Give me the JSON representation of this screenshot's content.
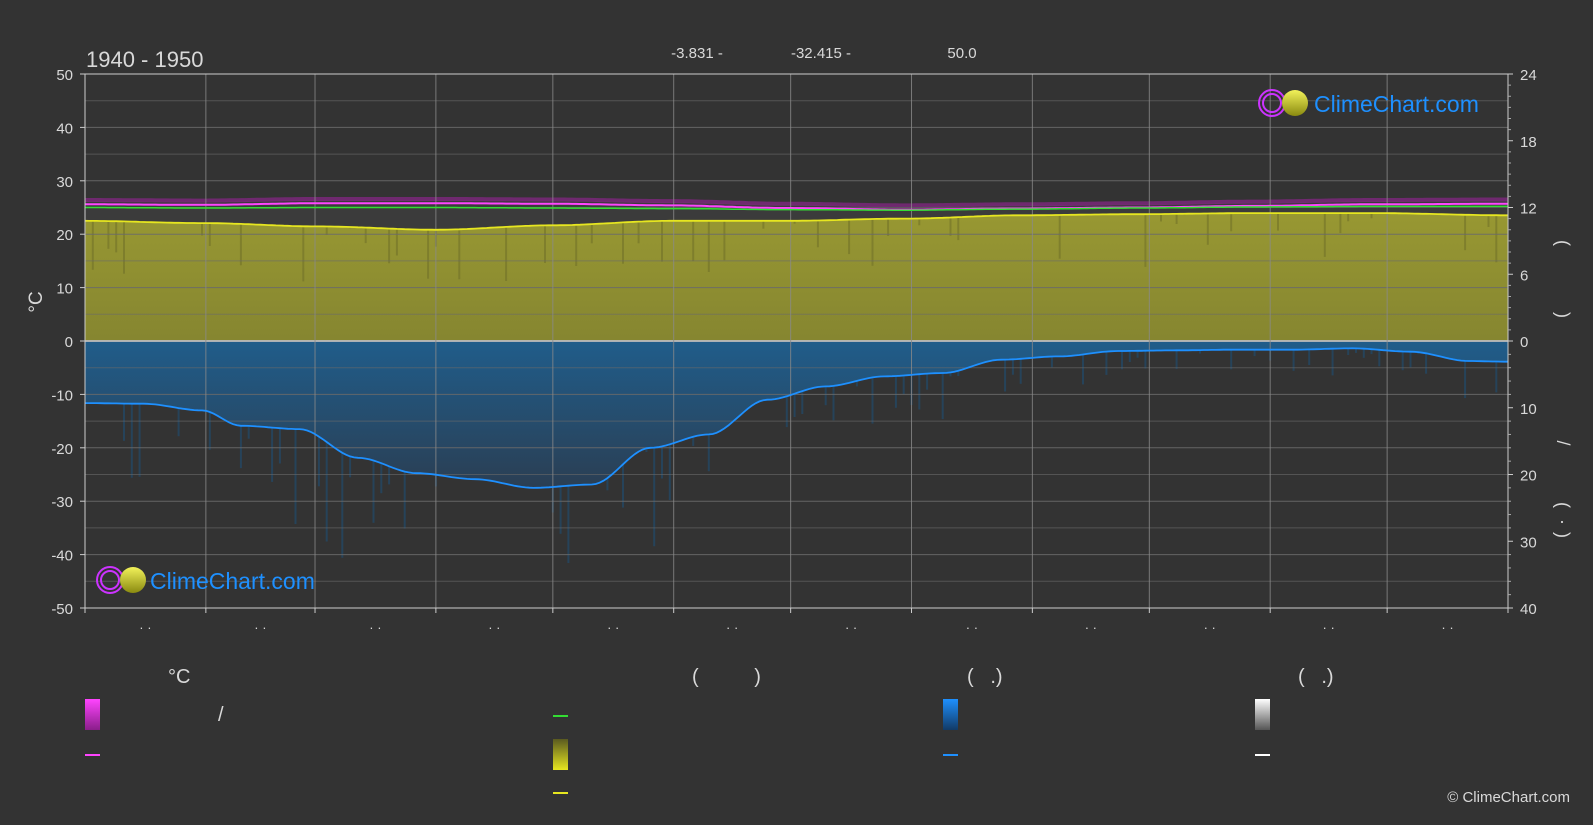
{
  "header": {
    "period": "1940 - 1950",
    "coord_lat": "-3.831 -",
    "coord_lon": "-32.415 -",
    "elevation": "50.0"
  },
  "copyright": "© ClimeChart.com",
  "watermark": {
    "text": "ClimeChart.com",
    "color": "#1e90ff"
  },
  "chart_data": {
    "type": "area",
    "x_tick_labels": [
      "· ·",
      "· ·",
      "· ·",
      "· ·",
      "· ·",
      "· ·",
      "· ·",
      "· ·",
      "· ·",
      "· ·",
      "· ·",
      "· ·"
    ],
    "left_axis": {
      "label": "°C",
      "ylim": [
        -50,
        50
      ],
      "ticks": [
        50,
        40,
        30,
        20,
        10,
        0,
        -10,
        -20,
        -30,
        -40,
        -50
      ]
    },
    "right_axis_upper": {
      "ylim": [
        0,
        24
      ],
      "ticks": [
        24,
        18,
        12,
        6,
        0
      ],
      "label_glyphs": [
        "(",
        ")"
      ]
    },
    "right_axis_lower": {
      "ylim": [
        0,
        40
      ],
      "ticks": [
        0,
        10,
        20,
        30,
        40
      ],
      "label_glyphs": [
        "/",
        "(",
        "·",
        ")"
      ]
    },
    "grid": true,
    "x_range": [
      0,
      365
    ],
    "series": [
      {
        "key": "temp_max_line",
        "color": "#ff44ff",
        "x": [
          0,
          30,
          60,
          90,
          120,
          150,
          180,
          210,
          240,
          270,
          300,
          330,
          365
        ],
        "values": [
          25.6,
          25.5,
          25.8,
          25.8,
          25.7,
          25.4,
          24.9,
          24.6,
          24.8,
          25.0,
          25.3,
          25.6,
          25.7
        ]
      },
      {
        "key": "temp_mean_line",
        "color": "#33dd33",
        "x": [
          0,
          30,
          60,
          90,
          120,
          150,
          180,
          210,
          240,
          270,
          300,
          330,
          365
        ],
        "values": [
          25.0,
          24.9,
          25.0,
          25.0,
          24.9,
          24.8,
          24.6,
          24.5,
          24.7,
          24.9,
          25.1,
          25.2,
          25.2
        ]
      },
      {
        "key": "sunshine_line",
        "color": "#e6e620",
        "axis": "right_upper",
        "x": [
          0,
          30,
          60,
          90,
          120,
          150,
          180,
          210,
          240,
          270,
          300,
          330,
          365
        ],
        "values": [
          10.8,
          10.6,
          10.3,
          10.0,
          10.4,
          10.8,
          10.8,
          11.0,
          11.3,
          11.4,
          11.5,
          11.5,
          11.3
        ]
      },
      {
        "key": "precipitation_line",
        "color": "#1e90ff",
        "axis": "right_lower",
        "x": [
          0,
          15,
          30,
          40,
          55,
          70,
          85,
          100,
          115,
          130,
          145,
          160,
          175,
          190,
          205,
          220,
          235,
          250,
          265,
          280,
          295,
          310,
          325,
          340,
          355,
          365
        ],
        "values": [
          9.3,
          9.4,
          10.4,
          12.7,
          13.2,
          17.5,
          19.8,
          20.7,
          22.0,
          21.5,
          16.0,
          14.0,
          8.8,
          6.8,
          5.3,
          4.8,
          2.8,
          2.3,
          1.5,
          1.4,
          1.3,
          1.3,
          1.1,
          1.6,
          3.0,
          3.1
        ]
      }
    ]
  },
  "legend": {
    "sections": [
      {
        "key": "temperature",
        "heading": "°C"
      },
      {
        "key": "sunshine",
        "heading": "(          )"
      },
      {
        "key": "rain",
        "heading": "(   .)"
      },
      {
        "key": "snow",
        "heading": "(   .)"
      }
    ],
    "items": [
      {
        "key": "temp_range",
        "type": "gradient",
        "colors": [
          "#ff44ff",
          "#8a1e8a"
        ],
        "text": "/"
      },
      {
        "key": "temp_mean_swatch",
        "type": "line",
        "color": "#ff44ff",
        "text": ""
      },
      {
        "key": "mean_green_swatch",
        "type": "line",
        "color": "#33dd33",
        "text": ""
      },
      {
        "key": "sunshine_gradient",
        "type": "gradient",
        "colors": [
          "#e6e620",
          "#5a5a20"
        ],
        "text": ""
      },
      {
        "key": "sunshine_swatch",
        "type": "line",
        "color": "#e6e620",
        "text": ""
      },
      {
        "key": "rain_gradient",
        "type": "gradient",
        "colors": [
          "#1e90ff",
          "#123a66"
        ],
        "text": ""
      },
      {
        "key": "rain_swatch",
        "type": "line",
        "color": "#1e90ff",
        "text": ""
      },
      {
        "key": "snow_gradient",
        "type": "gradient",
        "colors": [
          "#ffffff",
          "#555555"
        ],
        "text": ""
      },
      {
        "key": "snow_swatch",
        "type": "line",
        "color": "#ffffff",
        "text": ""
      }
    ]
  }
}
